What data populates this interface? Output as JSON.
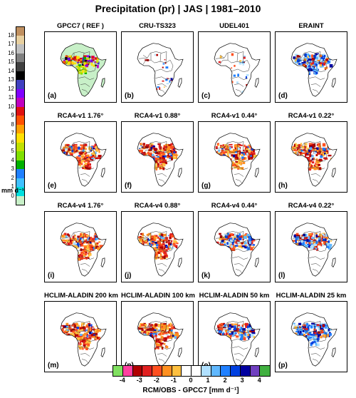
{
  "figure_title": "Precipitation (pr) | JAS | 1981–2010",
  "panels": [
    {
      "title": "GPCC7 ( REF )",
      "label": "(a)",
      "kind": "abs"
    },
    {
      "title": "CRU-TS323",
      "label": "(b)",
      "kind": "sparse"
    },
    {
      "title": "UDEL401",
      "label": "(c)",
      "kind": "sparse"
    },
    {
      "title": "ERAINT",
      "label": "(d)",
      "kind": "wet"
    },
    {
      "title": "RCA4-v1 1.76°",
      "label": "(e)",
      "kind": "dry"
    },
    {
      "title": "RCA4-v1 0.88°",
      "label": "(f)",
      "kind": "dry"
    },
    {
      "title": "RCA4-v1 0.44°",
      "label": "(g)",
      "kind": "dry"
    },
    {
      "title": "RCA4-v1 0.22°",
      "label": "(h)",
      "kind": "dry"
    },
    {
      "title": "RCA4-v4 1.76°",
      "label": "(i)",
      "kind": "dry"
    },
    {
      "title": "RCA4-v4 0.88°",
      "label": "(j)",
      "kind": "dry"
    },
    {
      "title": "RCA4-v4 0.44°",
      "label": "(k)",
      "kind": "mixed"
    },
    {
      "title": "RCA4-v4 0.22°",
      "label": "(l)",
      "kind": "mixed"
    },
    {
      "title": "HCLIM-ALADIN 200 km",
      "label": "(m)",
      "kind": "dry"
    },
    {
      "title": "HCLIM-ALADIN 100 km",
      "label": "(n)",
      "kind": "dry"
    },
    {
      "title": "HCLIM-ALADIN 50 km",
      "label": "(o)",
      "kind": "mixed"
    },
    {
      "title": "HCLIM-ALADIN 25 km",
      "label": "(p)",
      "kind": "wet"
    }
  ],
  "colorbar_abs": {
    "units": "mm d⁻¹",
    "ticks": [
      "0",
      "1",
      "2",
      "3",
      "4",
      "5",
      "6",
      "7",
      "8",
      "9",
      "10",
      "11",
      "12",
      "13",
      "14",
      "15",
      "16",
      "17",
      "18"
    ],
    "colors": [
      "#c8f0c8",
      "#00e0e0",
      "#40c0ff",
      "#2080ff",
      "#00b000",
      "#80e000",
      "#c0e000",
      "#ffe000",
      "#ffa000",
      "#ff5000",
      "#e01010",
      "#c000c0",
      "#8000ff",
      "#4040c0",
      "#000000",
      "#404040",
      "#808080",
      "#c0c0c0",
      "#e8d0a0",
      "#c09060"
    ]
  },
  "colorbar_diff": {
    "label": "RCM/OBS - GPCC7 [mm d⁻¹]",
    "ticks": [
      "-4",
      "-3",
      "-2",
      "-1",
      "0",
      "1",
      "2",
      "3",
      "4"
    ],
    "colors": [
      "#80e060",
      "#ff40a0",
      "#b00000",
      "#e02020",
      "#ff5020",
      "#ff9020",
      "#ffc040",
      "#ffffff",
      "#ffffff",
      "#b0e0ff",
      "#60b8ff",
      "#2080ff",
      "#0040e0",
      "#0000a0",
      "#7040c0",
      "#40b040"
    ]
  },
  "chart_data": {
    "type": "heatmap",
    "title": "Precipitation (pr) | JAS | 1981–2010",
    "panels": [
      "GPCC7 ( REF )",
      "CRU-TS323",
      "UDEL401",
      "ERAINT",
      "RCA4-v1 1.76°",
      "RCA4-v1 0.88°",
      "RCA4-v1 0.44°",
      "RCA4-v1 0.22°",
      "RCA4-v4 1.76°",
      "RCA4-v4 0.88°",
      "RCA4-v4 0.44°",
      "RCA4-v4 0.22°",
      "HCLIM-ALADIN 200 km",
      "HCLIM-ALADIN 100 km",
      "HCLIM-ALADIN 50 km",
      "HCLIM-ALADIN 25 km"
    ],
    "reference_scale_units": "mm d⁻¹",
    "reference_scale_range": [
      0,
      18
    ],
    "difference_scale_label": "RCM/OBS - GPCC7 [mm d⁻¹]",
    "difference_scale_range": [
      -4,
      4
    ]
  }
}
